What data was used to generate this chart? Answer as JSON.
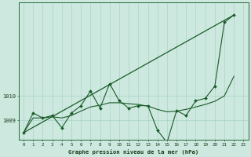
{
  "xlabel": "Graphe pression niveau de la mer (hPa)",
  "background_color": "#cce8df",
  "grid_color": "#aad4c8",
  "line_color": "#1a5c28",
  "ylim": [
    1008.2,
    1013.8
  ],
  "xlim": [
    -0.5,
    23.5
  ],
  "yticks": [
    1009,
    1010
  ],
  "xtick_labels": [
    "0",
    "1",
    "2",
    "3",
    "4",
    "5",
    "6",
    "7",
    "8",
    "9",
    "10",
    "11",
    "12",
    "13",
    "14",
    "15",
    "16",
    "17",
    "18",
    "19",
    "20",
    "21",
    "22",
    "23"
  ],
  "jagged": [
    1008.5,
    1009.3,
    1009.1,
    1009.2,
    1008.7,
    1009.3,
    1009.6,
    1010.2,
    1009.5,
    1010.5,
    1009.8,
    1009.5,
    1009.6,
    1009.6,
    1008.6,
    1008.1,
    1009.4,
    1009.2,
    1009.8,
    1009.9,
    1010.4,
    1013.0,
    1013.3
  ],
  "smooth": [
    1008.5,
    1009.1,
    1009.1,
    1009.15,
    1009.1,
    1009.2,
    1009.38,
    1009.55,
    1009.62,
    1009.72,
    1009.72,
    1009.68,
    1009.65,
    1009.58,
    1009.45,
    1009.35,
    1009.38,
    1009.45,
    1009.55,
    1009.65,
    1009.78,
    1010.0,
    1010.8
  ],
  "trend_x": [
    0,
    22
  ],
  "trend_y": [
    1008.5,
    1013.3
  ]
}
